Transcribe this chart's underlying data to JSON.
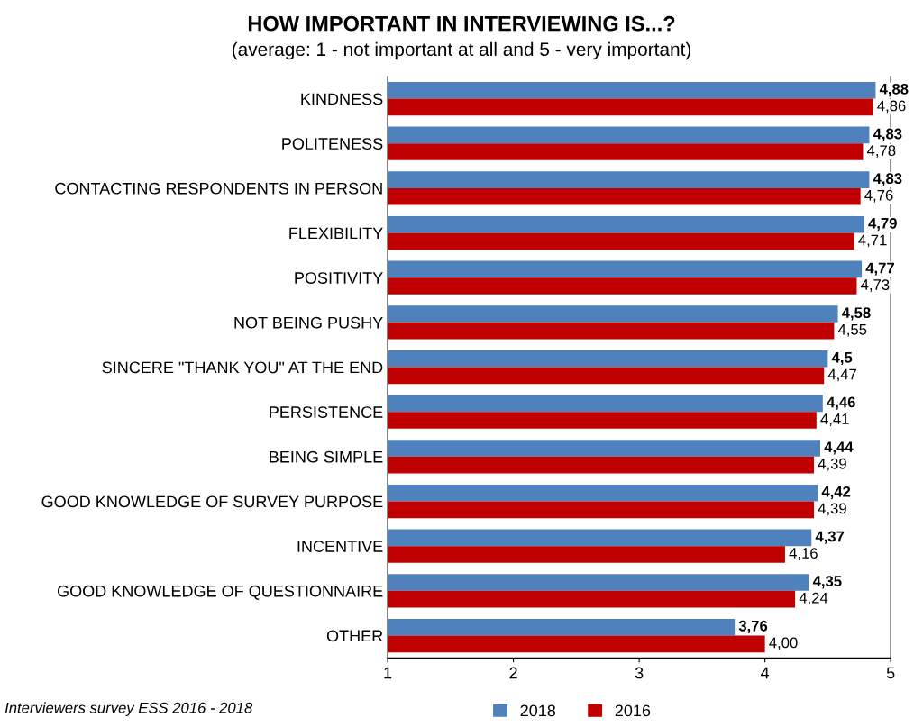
{
  "chart_data": {
    "type": "bar",
    "orientation": "horizontal",
    "title": "HOW IMPORTANT IN INTERVIEWING IS...?",
    "subtitle": "(average: 1 - not important at all and 5 - very important)",
    "categories": [
      "KINDNESS",
      "POLITENESS",
      "CONTACTING RESPONDENTS IN PERSON",
      "FLEXIBILITY",
      "POSITIVITY",
      "NOT BEING PUSHY",
      "SINCERE \"THANK YOU\" AT THE END",
      "PERSISTENCE",
      "BEING SIMPLE",
      "GOOD KNOWLEDGE OF SURVEY PURPOSE",
      "INCENTIVE",
      "GOOD KNOWLEDGE OF QUESTIONNAIRE",
      "OTHER"
    ],
    "series": [
      {
        "name": "2018",
        "color": "#4f81bd",
        "values": [
          4.88,
          4.83,
          4.83,
          4.79,
          4.77,
          4.58,
          4.5,
          4.46,
          4.44,
          4.42,
          4.37,
          4.35,
          3.76
        ],
        "value_labels": [
          "4,88",
          "4,83",
          "4,83",
          "4,79",
          "4,77",
          "4,58",
          "4,5",
          "4,46",
          "4,44",
          "4,42",
          "4,37",
          "4,35",
          "3,76"
        ]
      },
      {
        "name": "2016",
        "color": "#c00000",
        "values": [
          4.86,
          4.78,
          4.76,
          4.71,
          4.73,
          4.55,
          4.47,
          4.41,
          4.39,
          4.39,
          4.16,
          4.24,
          4.0
        ],
        "value_labels": [
          "4,86",
          "4,78",
          "4,76",
          "4,71",
          "4,73",
          "4,55",
          "4,47",
          "4,41",
          "4,39",
          "4,39",
          "4,16",
          "4,24",
          "4,00"
        ]
      }
    ],
    "xlim": [
      1,
      5
    ],
    "xticks": [
      1,
      2,
      3,
      4,
      5
    ],
    "grid": false,
    "legend": "bottom",
    "annotations": [
      "Interviewers survey ESS 2016 - 2018"
    ]
  }
}
